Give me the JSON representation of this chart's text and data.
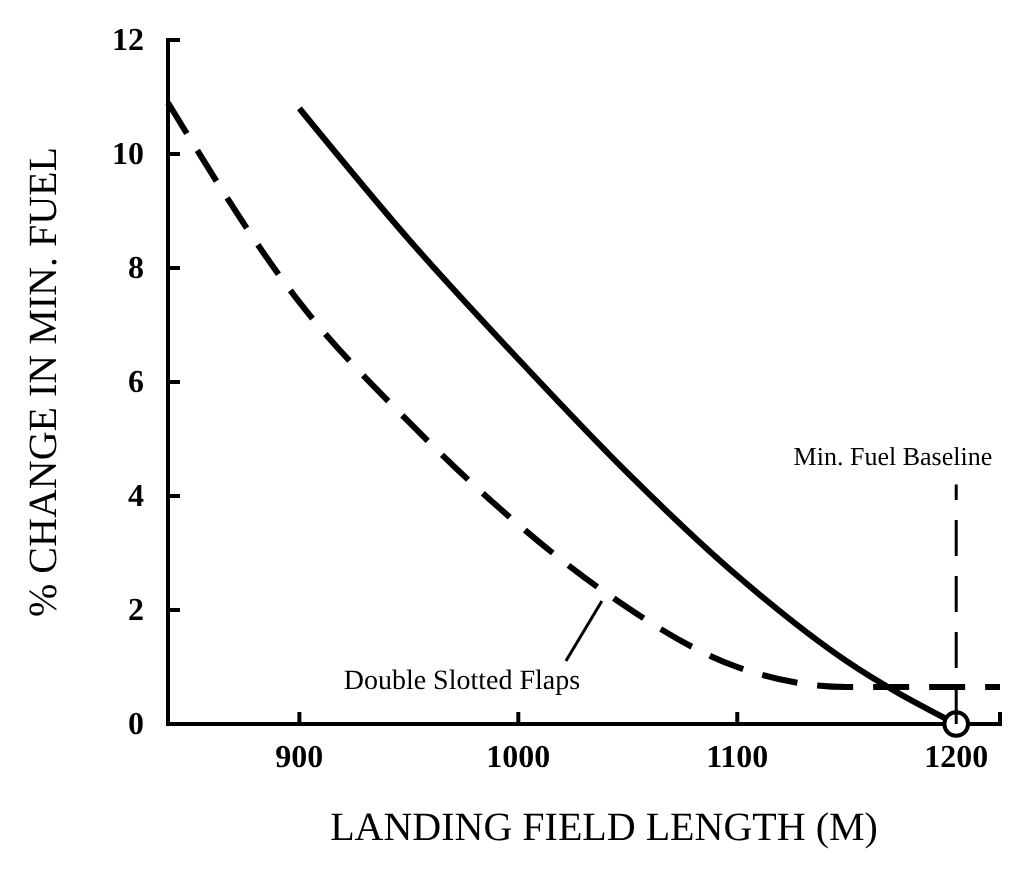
{
  "chart_data": {
    "type": "line",
    "xlabel": "LANDING FIELD LENGTH (M)",
    "ylabel": "% CHANGE IN MIN. FUEL",
    "xlim": [
      840,
      1220
    ],
    "ylim": [
      0,
      12
    ],
    "xticks": [
      900,
      1000,
      1100,
      1200
    ],
    "yticks": [
      0,
      2,
      4,
      6,
      8,
      10,
      12
    ],
    "grid": false,
    "series": [
      {
        "line_style": "solid",
        "color": "#000000",
        "x": [
          900,
          950,
          1000,
          1050,
          1100,
          1150,
          1200
        ],
        "values": [
          10.8,
          8.5,
          6.4,
          4.4,
          2.6,
          1.1,
          0
        ]
      },
      {
        "line_style": "dashed",
        "color": "#000000",
        "x": [
          840,
          900,
          950,
          1000,
          1040,
          1100,
          1150,
          1220
        ],
        "values": [
          10.9,
          7.4,
          5.3,
          3.5,
          2.3,
          1.0,
          0.65,
          0.65
        ]
      },
      {
        "type": "scatter",
        "marker": "circle",
        "color": "#000000",
        "x": [
          1200
        ],
        "values": [
          0
        ]
      }
    ],
    "ref_lines": [
      {
        "axis": "x",
        "value": 1200,
        "label": "Min. Fuel Baseline",
        "line_style": "dashed"
      }
    ],
    "annotations": [
      {
        "text": "Double Slotted Flaps",
        "x": 1040,
        "y": 2.3
      }
    ]
  }
}
